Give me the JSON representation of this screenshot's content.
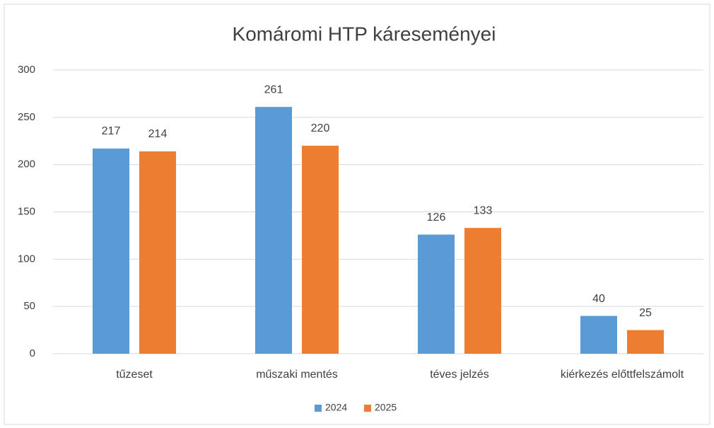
{
  "chart_data": {
    "type": "bar",
    "title": "Komáromi HTP káreseményei",
    "categories": [
      "tűzeset",
      "műszaki mentés",
      "téves jelzés",
      "kiérkezés előttfelszámolt"
    ],
    "series": [
      {
        "name": "2024",
        "color": "#5b9bd5",
        "values": [
          217,
          261,
          126,
          40
        ]
      },
      {
        "name": "2025",
        "color": "#ed7d31",
        "values": [
          214,
          220,
          133,
          25
        ]
      }
    ],
    "ylim": [
      0,
      300
    ],
    "yticks": [
      0,
      50,
      100,
      150,
      200,
      250,
      300
    ],
    "grid": true,
    "legend": "bottom"
  }
}
